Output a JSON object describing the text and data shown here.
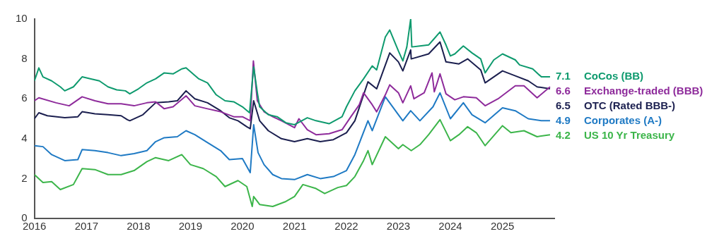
{
  "chart_data": {
    "type": "line",
    "xlim": [
      "2016-01-01",
      "2025-12-31"
    ],
    "ylim": [
      0,
      10
    ],
    "yticks": [
      0,
      2,
      4,
      6,
      8,
      10
    ],
    "xticks": [
      {
        "value": "2016-01-01",
        "label": "2016"
      },
      {
        "value": "2017-01-01",
        "label": "2017"
      },
      {
        "value": "2018-01-01",
        "label": "2018"
      },
      {
        "value": "2019-01-01",
        "label": "2019"
      },
      {
        "value": "2020-01-01",
        "label": "2020"
      },
      {
        "value": "2021-01-01",
        "label": "2021"
      },
      {
        "value": "2022-01-01",
        "label": "2022"
      },
      {
        "value": "2023-01-01",
        "label": "2023"
      },
      {
        "value": "2024-01-01",
        "label": "2024"
      },
      {
        "value": "2025-01-01",
        "label": "2025"
      }
    ],
    "grid": false,
    "legend": false,
    "marker": "none",
    "line_style": "solid",
    "series": [
      {
        "name": "CoCos (BB)",
        "color": "#0e9a6e",
        "x": [
          "2016-01",
          "2016-02",
          "2016-03",
          "2016-05",
          "2016-07",
          "2016-08",
          "2016-10",
          "2016-12",
          "2017-02",
          "2017-04",
          "2017-06",
          "2017-08",
          "2017-10",
          "2017-11",
          "2018-01",
          "2018-03",
          "2018-05",
          "2018-07",
          "2018-09",
          "2018-11",
          "2018-12",
          "2019-03",
          "2019-05",
          "2019-07",
          "2019-09",
          "2019-11",
          "2020-01",
          "2020-02-20",
          "2020-03-20",
          "2020-04-15",
          "2020-05",
          "2020-07",
          "2020-09",
          "2020-11",
          "2021-01",
          "2021-04",
          "2021-06",
          "2021-09",
          "2021-12",
          "2022-01",
          "2022-03",
          "2022-05",
          "2022-07",
          "2022-08",
          "2022-10",
          "2022-11",
          "2023-01",
          "2023-02",
          "2023-03",
          "2023-03-28",
          "2023-04-05",
          "2023-06",
          "2023-08",
          "2023-09",
          "2023-10-20",
          "2023-12",
          "2024-01",
          "2024-02",
          "2024-04",
          "2024-06",
          "2024-08",
          "2024-09",
          "2024-11",
          "2025-01",
          "2025-04",
          "2025-05",
          "2025-08",
          "2025-10",
          "2025-12"
        ],
        "values": [
          6.9,
          7.55,
          7.1,
          6.9,
          6.6,
          6.4,
          6.6,
          7.1,
          7.0,
          6.9,
          6.6,
          6.45,
          6.4,
          6.25,
          6.5,
          6.8,
          7.0,
          7.3,
          7.25,
          7.5,
          7.55,
          7.0,
          6.8,
          6.2,
          5.9,
          5.85,
          5.6,
          5.3,
          7.6,
          6.3,
          5.6,
          5.2,
          5.1,
          4.8,
          4.7,
          5.05,
          4.9,
          4.75,
          5.1,
          5.6,
          6.4,
          7.0,
          7.65,
          7.45,
          9.1,
          9.45,
          8.4,
          7.9,
          8.6,
          10.0,
          8.6,
          8.65,
          8.7,
          8.95,
          9.35,
          8.7,
          8.15,
          8.25,
          8.65,
          8.3,
          8.0,
          7.3,
          7.95,
          8.25,
          7.95,
          7.7,
          7.5,
          7.1,
          7.1
        ],
        "value_labels": [
          null,
          null,
          null,
          null,
          null,
          null,
          null,
          null,
          null,
          null,
          null,
          null,
          null,
          null,
          null,
          null,
          null,
          null,
          null,
          null,
          null,
          null,
          null,
          null,
          null,
          null,
          null,
          null,
          null,
          null,
          null,
          null,
          null,
          null,
          null,
          null,
          null,
          null,
          null,
          null,
          null,
          null,
          null,
          null,
          null,
          null,
          null,
          null,
          null,
          null,
          null,
          null,
          null,
          null,
          null,
          null,
          null,
          null,
          null,
          null,
          null,
          null,
          null,
          null,
          null,
          null,
          null,
          null,
          "7.1"
        ]
      },
      {
        "name": "Exchange-traded (BBB)",
        "color": "#8e2b9b",
        "x": [
          "2016-01",
          "2016-02",
          "2016-06",
          "2016-09",
          "2016-12",
          "2017-03",
          "2017-06",
          "2017-09",
          "2017-12",
          "2018-03",
          "2018-05",
          "2018-07",
          "2018-09",
          "2018-12",
          "2019-02",
          "2019-05",
          "2019-08",
          "2019-11",
          "2020-01",
          "2020-02-25",
          "2020-03-18",
          "2020-04-15",
          "2020-06",
          "2020-08",
          "2020-10",
          "2021-01",
          "2021-02",
          "2021-04",
          "2021-06",
          "2021-09",
          "2021-12",
          "2022-02",
          "2022-04",
          "2022-05",
          "2022-07",
          "2022-08",
          "2022-10",
          "2022-11",
          "2023-01",
          "2023-02",
          "2023-03-28",
          "2023-04-20",
          "2023-07",
          "2023-08-25",
          "2023-09-10",
          "2023-10-20",
          "2023-12",
          "2024-02",
          "2024-04",
          "2024-07",
          "2024-09",
          "2024-12",
          "2025-04",
          "2025-06",
          "2025-09",
          "2025-12"
        ],
        "values": [
          5.9,
          6.05,
          5.8,
          5.65,
          6.1,
          5.9,
          5.75,
          5.75,
          5.65,
          5.8,
          5.85,
          5.5,
          5.6,
          6.15,
          5.65,
          5.5,
          5.35,
          5.1,
          5.1,
          4.9,
          7.9,
          5.9,
          5.35,
          5.1,
          4.9,
          4.55,
          5.0,
          4.45,
          4.2,
          4.25,
          4.45,
          5.1,
          5.7,
          6.3,
          5.7,
          5.35,
          6.2,
          6.7,
          6.3,
          5.8,
          6.65,
          6.0,
          6.3,
          7.3,
          6.35,
          7.25,
          6.25,
          5.95,
          6.1,
          6.05,
          5.65,
          6.0,
          6.65,
          6.65,
          6.05,
          6.6
        ],
        "value_labels": [
          null,
          null,
          null,
          null,
          null,
          null,
          null,
          null,
          null,
          null,
          null,
          null,
          null,
          null,
          null,
          null,
          null,
          null,
          null,
          null,
          null,
          null,
          null,
          null,
          null,
          null,
          null,
          null,
          null,
          null,
          null,
          null,
          null,
          null,
          null,
          null,
          null,
          null,
          null,
          null,
          null,
          null,
          null,
          null,
          null,
          null,
          null,
          null,
          null,
          null,
          null,
          null,
          null,
          null,
          null,
          "6.6"
        ]
      },
      {
        "name": "OTC (Rated BBB-)",
        "color": "#1b1f4f",
        "x": [
          "2016-01",
          "2016-02",
          "2016-04",
          "2016-08",
          "2016-11",
          "2016-12",
          "2017-03",
          "2017-06",
          "2017-09",
          "2017-10-15",
          "2017-11",
          "2018-02",
          "2018-05",
          "2018-08",
          "2018-10",
          "2018-12",
          "2019-02",
          "2019-05",
          "2019-08",
          "2019-10",
          "2019-12",
          "2020-02",
          "2020-02-25",
          "2020-03-20",
          "2020-05",
          "2020-07",
          "2020-10",
          "2021-01",
          "2021-04",
          "2021-07",
          "2021-10",
          "2022-01",
          "2022-03",
          "2022-06",
          "2022-08",
          "2022-11",
          "2023-01",
          "2023-02",
          "2023-03-28",
          "2023-04",
          "2023-08",
          "2023-10-20",
          "2023-12",
          "2024-03",
          "2024-05",
          "2024-08",
          "2024-09",
          "2025-01",
          "2025-04",
          "2025-07",
          "2025-09",
          "2025-12"
        ],
        "values": [
          5.0,
          5.3,
          5.15,
          5.05,
          5.1,
          5.35,
          5.25,
          5.2,
          5.15,
          4.95,
          4.9,
          5.2,
          5.8,
          5.85,
          5.9,
          6.4,
          6.0,
          5.8,
          5.4,
          5.05,
          4.9,
          4.6,
          4.5,
          5.9,
          4.9,
          4.4,
          4.0,
          3.85,
          4.0,
          3.85,
          3.95,
          4.3,
          4.9,
          6.85,
          6.5,
          8.3,
          7.85,
          7.4,
          8.45,
          8.0,
          8.25,
          8.85,
          7.85,
          7.75,
          8.0,
          7.45,
          6.8,
          7.4,
          7.15,
          6.9,
          6.6,
          6.5
        ],
        "value_labels": [
          null,
          null,
          null,
          null,
          null,
          null,
          null,
          null,
          null,
          null,
          null,
          null,
          null,
          null,
          null,
          null,
          null,
          null,
          null,
          null,
          null,
          null,
          null,
          null,
          null,
          null,
          null,
          null,
          null,
          null,
          null,
          null,
          null,
          null,
          null,
          null,
          null,
          null,
          null,
          null,
          null,
          null,
          null,
          null,
          null,
          null,
          null,
          null,
          null,
          null,
          null,
          "6.5"
        ]
      },
      {
        "name": "Corporates (A-)",
        "color": "#1f7ac4",
        "x": [
          "2016-01",
          "2016-03",
          "2016-05",
          "2016-08",
          "2016-11",
          "2016-12",
          "2017-03",
          "2017-06",
          "2017-09",
          "2017-12",
          "2018-03",
          "2018-05",
          "2018-07",
          "2018-10",
          "2018-12",
          "2019-02",
          "2019-05",
          "2019-08",
          "2019-10",
          "2020-01",
          "2020-02-25",
          "2020-03-20",
          "2020-04-20",
          "2020-06",
          "2020-08",
          "2020-10",
          "2021-01",
          "2021-04",
          "2021-07",
          "2021-10",
          "2022-01",
          "2022-03",
          "2022-06",
          "2022-07",
          "2022-10",
          "2023-01",
          "2023-02",
          "2023-03-28",
          "2023-06",
          "2023-09",
          "2023-10-20",
          "2024-01",
          "2024-04",
          "2024-06",
          "2024-09",
          "2025-01",
          "2025-04",
          "2025-07",
          "2025-10",
          "2025-12"
        ],
        "values": [
          3.65,
          3.6,
          3.2,
          2.9,
          2.95,
          3.45,
          3.4,
          3.3,
          3.15,
          3.25,
          3.4,
          3.85,
          4.05,
          4.1,
          4.4,
          4.2,
          3.8,
          3.4,
          2.95,
          3.0,
          2.3,
          4.7,
          3.3,
          2.7,
          2.2,
          2.0,
          1.95,
          2.2,
          2.0,
          2.1,
          2.4,
          3.2,
          4.9,
          4.4,
          6.1,
          5.2,
          4.9,
          5.4,
          4.9,
          5.6,
          6.3,
          5.0,
          5.8,
          5.2,
          4.8,
          5.55,
          5.4,
          5.0,
          4.9,
          4.9
        ],
        "value_labels": [
          null,
          null,
          null,
          null,
          null,
          null,
          null,
          null,
          null,
          null,
          null,
          null,
          null,
          null,
          null,
          null,
          null,
          null,
          null,
          null,
          null,
          null,
          null,
          null,
          null,
          null,
          null,
          null,
          null,
          null,
          null,
          null,
          null,
          null,
          null,
          null,
          null,
          null,
          null,
          null,
          null,
          null,
          null,
          null,
          null,
          null,
          null,
          null,
          null,
          "4.9"
        ]
      },
      {
        "name": "US 10 Yr Treasury",
        "color": "#3cb54a",
        "x": [
          "2016-01",
          "2016-03",
          "2016-05",
          "2016-07",
          "2016-10",
          "2016-12",
          "2017-03",
          "2017-06",
          "2017-09",
          "2017-12",
          "2018-03",
          "2018-05",
          "2018-08",
          "2018-11",
          "2019-01",
          "2019-04",
          "2019-07",
          "2019-09",
          "2019-12",
          "2020-02",
          "2020-03-10",
          "2020-03-20",
          "2020-05",
          "2020-08",
          "2020-11",
          "2021-01",
          "2021-03",
          "2021-06",
          "2021-08",
          "2021-11",
          "2022-01",
          "2022-03",
          "2022-05",
          "2022-06",
          "2022-07",
          "2022-10",
          "2023-01",
          "2023-02",
          "2023-04",
          "2023-06",
          "2023-08",
          "2023-10-20",
          "2024-01",
          "2024-03",
          "2024-05",
          "2024-07",
          "2024-09",
          "2025-01",
          "2025-03",
          "2025-06",
          "2025-09",
          "2025-12"
        ],
        "values": [
          2.2,
          1.8,
          1.85,
          1.45,
          1.7,
          2.5,
          2.45,
          2.2,
          2.2,
          2.4,
          2.85,
          3.05,
          2.9,
          3.2,
          2.7,
          2.5,
          2.1,
          1.6,
          1.9,
          1.6,
          0.6,
          1.1,
          0.7,
          0.6,
          0.85,
          1.1,
          1.7,
          1.5,
          1.25,
          1.55,
          1.65,
          2.1,
          2.9,
          3.4,
          2.7,
          4.1,
          3.5,
          3.7,
          3.4,
          3.7,
          4.2,
          4.95,
          3.9,
          4.2,
          4.6,
          4.3,
          3.65,
          4.65,
          4.3,
          4.4,
          4.1,
          4.2
        ],
        "value_labels": [
          null,
          null,
          null,
          null,
          null,
          null,
          null,
          null,
          null,
          null,
          null,
          null,
          null,
          null,
          null,
          null,
          null,
          null,
          null,
          null,
          null,
          null,
          null,
          null,
          null,
          null,
          null,
          null,
          null,
          null,
          null,
          null,
          null,
          null,
          null,
          null,
          null,
          null,
          null,
          null,
          null,
          null,
          null,
          null,
          null,
          null,
          null,
          null,
          null,
          null,
          null,
          "4.2"
        ]
      }
    ]
  }
}
